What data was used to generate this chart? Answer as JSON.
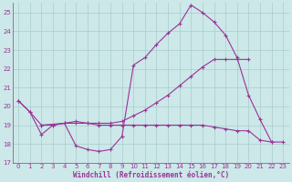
{
  "bg_color": "#cce8e8",
  "grid_color": "#aacccc",
  "line_color": "#993399",
  "xlabel": "Windchill (Refroidissement éolien,°C)",
  "xlim": [
    -0.5,
    23.5
  ],
  "ylim": [
    17,
    25.5
  ],
  "yticks": [
    17,
    18,
    19,
    20,
    21,
    22,
    23,
    24,
    25
  ],
  "xticks": [
    0,
    1,
    2,
    3,
    4,
    5,
    6,
    7,
    8,
    9,
    10,
    11,
    12,
    13,
    14,
    15,
    16,
    17,
    18,
    19,
    20,
    21,
    22,
    23
  ],
  "series1_x": [
    0,
    1,
    2,
    3,
    4,
    5,
    6,
    7,
    8,
    9,
    10,
    11,
    12,
    13,
    14,
    15,
    16,
    17,
    18,
    19,
    20,
    21,
    22
  ],
  "series1_y": [
    20.3,
    19.7,
    18.5,
    19.0,
    19.1,
    17.9,
    17.7,
    17.6,
    17.7,
    18.4,
    22.2,
    22.6,
    23.3,
    23.9,
    24.4,
    25.4,
    25.0,
    24.5,
    23.8,
    22.6,
    20.6,
    19.3,
    18.1
  ],
  "series2_x": [
    0,
    1,
    2,
    3,
    4,
    5,
    6,
    7,
    8,
    9,
    10,
    11,
    12,
    13,
    14,
    15,
    16,
    17,
    18,
    19,
    20
  ],
  "series2_y": [
    20.3,
    19.7,
    19.0,
    19.0,
    19.1,
    19.2,
    19.1,
    19.1,
    19.1,
    19.2,
    19.5,
    19.8,
    20.2,
    20.6,
    21.1,
    21.6,
    22.1,
    22.5,
    22.5,
    22.5,
    22.5
  ],
  "series3_x": [
    2,
    4,
    5,
    6,
    7,
    8,
    9,
    10,
    11,
    12,
    13,
    14,
    15,
    16,
    17,
    18,
    19,
    20,
    21,
    22,
    23
  ],
  "series3_y": [
    19.0,
    19.1,
    19.1,
    19.1,
    19.0,
    19.0,
    19.0,
    19.0,
    19.0,
    19.0,
    19.0,
    19.0,
    19.0,
    19.0,
    18.9,
    18.8,
    18.7,
    18.7,
    18.2,
    18.1,
    18.1
  ]
}
